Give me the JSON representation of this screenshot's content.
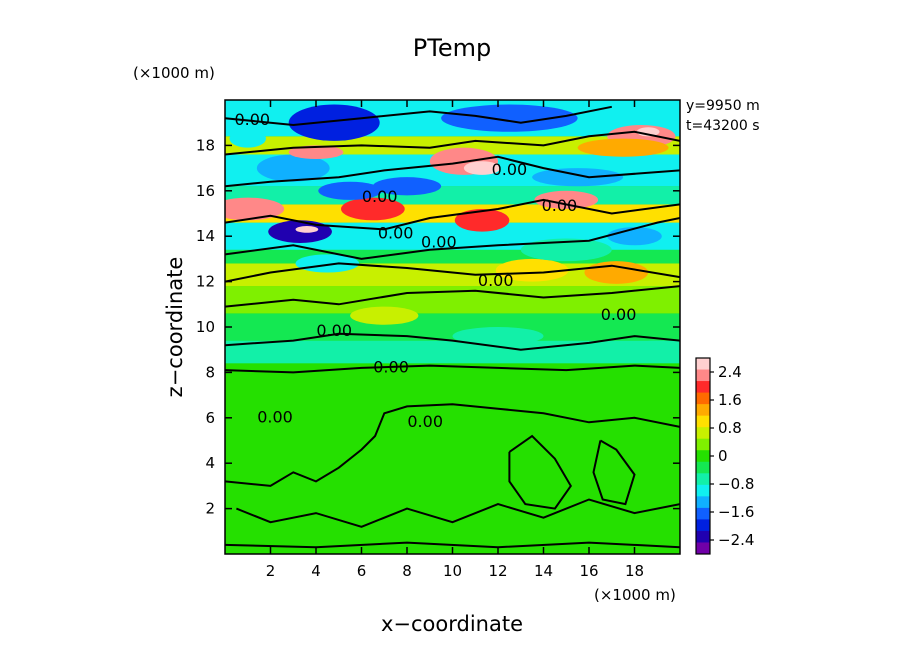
{
  "chart_data": {
    "type": "heatmap",
    "title": "PTemp",
    "xlabel": "x−coordinate",
    "ylabel": "z−coordinate",
    "x_unit": "(×1000 m)",
    "y_unit": "(×1000 m)",
    "xlim": [
      0,
      20
    ],
    "ylim": [
      0,
      20
    ],
    "x_ticks": [
      "2",
      "4",
      "6",
      "8",
      "10",
      "12",
      "14",
      "16",
      "18"
    ],
    "y_ticks": [
      "2",
      "4",
      "6",
      "8",
      "10",
      "12",
      "14",
      "16",
      "18"
    ],
    "info": [
      "y=9950 m",
      "t=43200 s"
    ],
    "colorbar": {
      "range": [
        -2.8,
        2.8
      ],
      "ticks": [
        "2.4",
        "1.6",
        "0.8",
        "0",
        "−0.8",
        "−1.6",
        "−2.4"
      ],
      "colors": [
        "#ffd0d0",
        "#ff8888",
        "#ff2a2a",
        "#ff6a00",
        "#ffaa00",
        "#ffe000",
        "#c8f000",
        "#7ff000",
        "#25e000",
        "#14e852",
        "#12f0a8",
        "#10f0f0",
        "#10b0ff",
        "#1060ff",
        "#0020e0",
        "#2000b0",
        "#7000a8"
      ]
    },
    "contour_labels": [
      "0.00",
      "0.00",
      "0.00",
      "0.00",
      "0.00",
      "0.00",
      "0.00",
      "0.00",
      "0.00",
      "0.00",
      "0.00",
      "0.00"
    ],
    "series": [
      {
        "z_km": 0.5,
        "value": 0.0
      },
      {
        "z_km": 4,
        "value": 0.0
      },
      {
        "z_km": 8,
        "value": -0.6
      },
      {
        "z_km": 12,
        "value": 0.5
      },
      {
        "z_km": 14.2,
        "value": -2.5
      },
      {
        "z_km": 16.8,
        "value": 2.6
      },
      {
        "z_km": 19.2,
        "value": -2.0
      }
    ]
  }
}
